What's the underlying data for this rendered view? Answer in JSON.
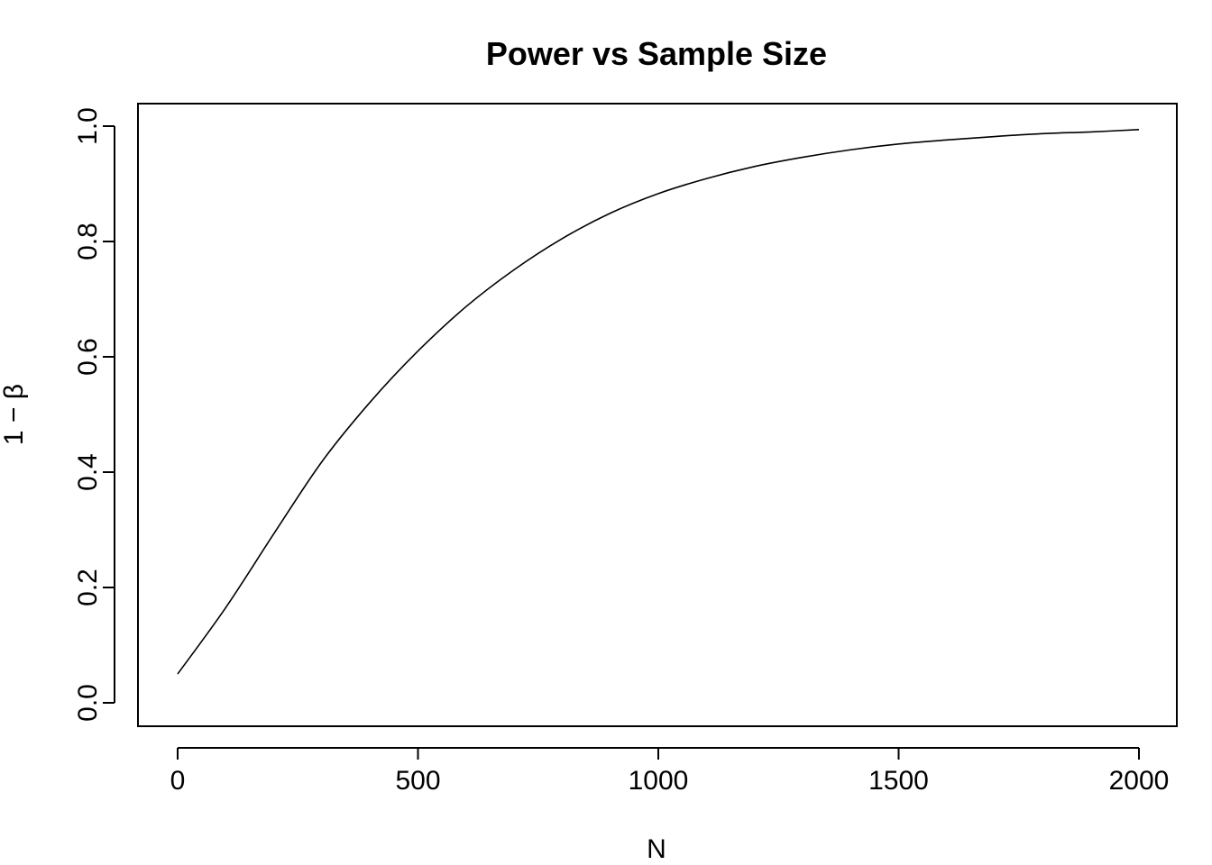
{
  "chart_data": {
    "type": "line",
    "title": "Power vs Sample Size",
    "xlabel": "N",
    "ylabel": "1 − β",
    "xlim": [
      0,
      2000
    ],
    "ylim": [
      0,
      1.0
    ],
    "x_ticks": [
      0,
      500,
      1000,
      1500,
      2000
    ],
    "x_tick_labels": [
      "0",
      "500",
      "1000",
      "1500",
      "2000"
    ],
    "y_ticks": [
      0.0,
      0.2,
      0.4,
      0.6,
      0.8,
      1.0
    ],
    "y_tick_labels": [
      "0.0",
      "0.2",
      "0.4",
      "0.6",
      "0.8",
      "1.0"
    ],
    "grid": false,
    "legend": "none",
    "series": [
      {
        "color": "#000000",
        "x": [
          0,
          100,
          200,
          300,
          400,
          500,
          600,
          700,
          800,
          900,
          1000,
          1100,
          1200,
          1300,
          1400,
          1500,
          1600,
          1700,
          1800,
          1900,
          2000
        ],
        "y": [
          0.05,
          0.165,
          0.293,
          0.418,
          0.521,
          0.61,
          0.687,
          0.751,
          0.805,
          0.849,
          0.883,
          0.909,
          0.93,
          0.946,
          0.959,
          0.969,
          0.976,
          0.982,
          0.987,
          0.99,
          0.994
        ]
      }
    ]
  }
}
